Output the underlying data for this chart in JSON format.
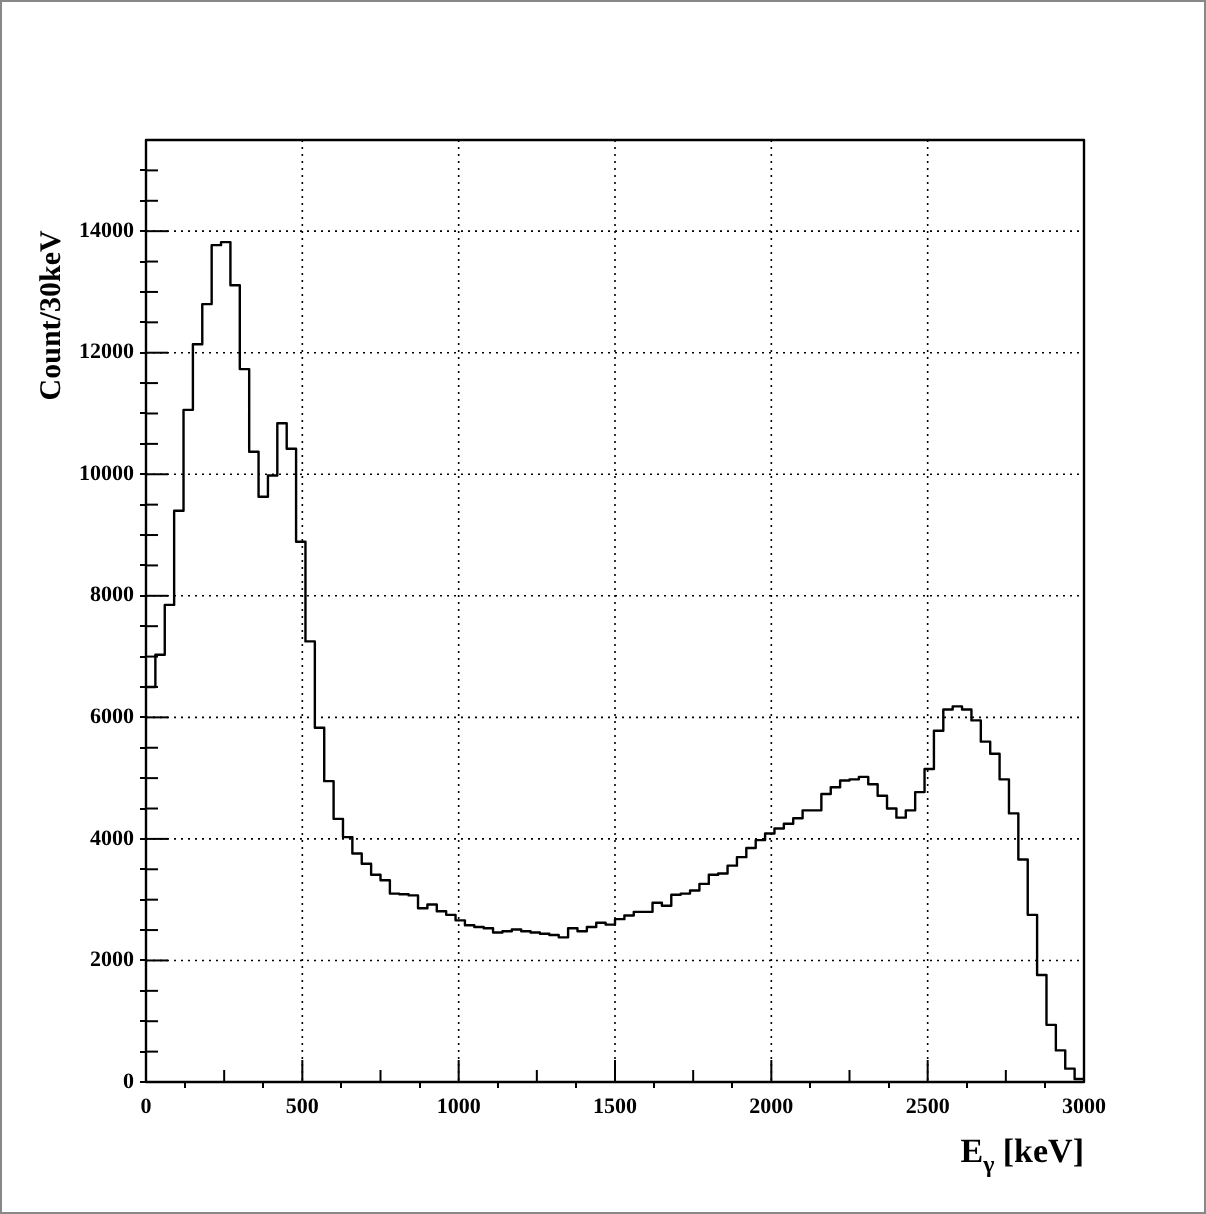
{
  "chart_data": {
    "type": "histogram",
    "xlabel": "E$_{γ}$ [keV]",
    "ylabel": "Count/30keV",
    "bins": [
      0,
      30,
      60,
      90,
      120,
      150,
      180,
      210,
      240,
      270,
      300,
      330,
      360,
      390,
      420,
      450,
      480,
      510,
      540,
      570,
      600,
      630,
      660,
      690,
      720,
      750,
      780,
      810,
      840,
      870,
      900,
      930,
      960,
      990,
      1020,
      1050,
      1080,
      1110,
      1140,
      1170,
      1200,
      1230,
      1260,
      1290,
      1320,
      1350,
      1380,
      1410,
      1440,
      1470,
      1500,
      1530,
      1560,
      1590,
      1620,
      1650,
      1680,
      1710,
      1740,
      1770,
      1800,
      1830,
      1860,
      1890,
      1920,
      1950,
      1980,
      2010,
      2040,
      2070,
      2100,
      2130,
      2160,
      2190,
      2220,
      2250,
      2280,
      2310,
      2340,
      2370,
      2400,
      2430,
      2460,
      2490,
      2520,
      2550,
      2580,
      2610,
      2640,
      2670,
      2700,
      2730,
      2760,
      2790,
      2820,
      2850,
      2880,
      2910,
      2940,
      2970,
      3000
    ],
    "values": [
      6500,
      7030,
      7850,
      9400,
      11060,
      12140,
      12800,
      13770,
      13820,
      13110,
      11730,
      10370,
      9630,
      9980,
      10840,
      10420,
      8890,
      7250,
      5830,
      4950,
      4330,
      4030,
      3760,
      3590,
      3410,
      3320,
      3100,
      3090,
      3070,
      2860,
      2920,
      2810,
      2750,
      2660,
      2580,
      2550,
      2530,
      2460,
      2480,
      2510,
      2480,
      2460,
      2440,
      2420,
      2380,
      2530,
      2480,
      2550,
      2620,
      2590,
      2680,
      2740,
      2800,
      2800,
      2950,
      2900,
      3080,
      3100,
      3150,
      3260,
      3410,
      3430,
      3560,
      3700,
      3850,
      3980,
      4090,
      4170,
      4250,
      4340,
      4470,
      4470,
      4740,
      4850,
      4960,
      4980,
      5020,
      4900,
      4710,
      4500,
      4350,
      4470,
      4770,
      5150,
      5780,
      6130,
      6180,
      6130,
      5950,
      5600,
      5400,
      4980,
      4420,
      3660,
      2750,
      1760,
      940,
      520,
      220,
      50
    ],
    "color": "#000000",
    "xlim": [
      0,
      3000
    ],
    "xticks": [
      0,
      {
        "value": 250,
        "label": null
      },
      500,
      {
        "value": 750,
        "label": null
      },
      1000,
      {
        "value": 1250,
        "label": null
      },
      1500,
      {
        "value": 1750,
        "label": null
      },
      2000,
      {
        "value": 2250,
        "label": null
      },
      2500,
      {
        "value": 2750,
        "label": null
      },
      3000
    ],
    "ylim": [
      0,
      15500
    ],
    "yticks": [
      0,
      {
        "value": 500,
        "label": null
      },
      {
        "value": 1000,
        "label": null
      },
      {
        "value": 1500,
        "label": null
      },
      2000,
      {
        "value": 2500,
        "label": null
      },
      {
        "value": 3000,
        "label": null
      },
      {
        "value": 3500,
        "label": null
      },
      4000,
      {
        "value": 4500,
        "label": null
      },
      {
        "value": 5000,
        "label": null
      },
      {
        "value": 5500,
        "label": null
      },
      6000,
      {
        "value": 6500,
        "label": null
      },
      {
        "value": 7000,
        "label": null
      },
      {
        "value": 7500,
        "label": null
      },
      8000,
      {
        "value": 8500,
        "label": null
      },
      {
        "value": 9000,
        "label": null
      },
      {
        "value": 9500,
        "label": null
      },
      10000,
      {
        "value": 10500,
        "label": null
      },
      {
        "value": 11000,
        "label": null
      },
      {
        "value": 11500,
        "label": null
      },
      12000,
      {
        "value": 12500,
        "label": null
      },
      {
        "value": 13000,
        "label": null
      },
      {
        "value": 13500,
        "label": null
      },
      14000,
      {
        "value": 14500,
        "label": null
      },
      {
        "value": 15000,
        "label": null
      }
    ],
    "grid": true,
    "legend": false
  }
}
